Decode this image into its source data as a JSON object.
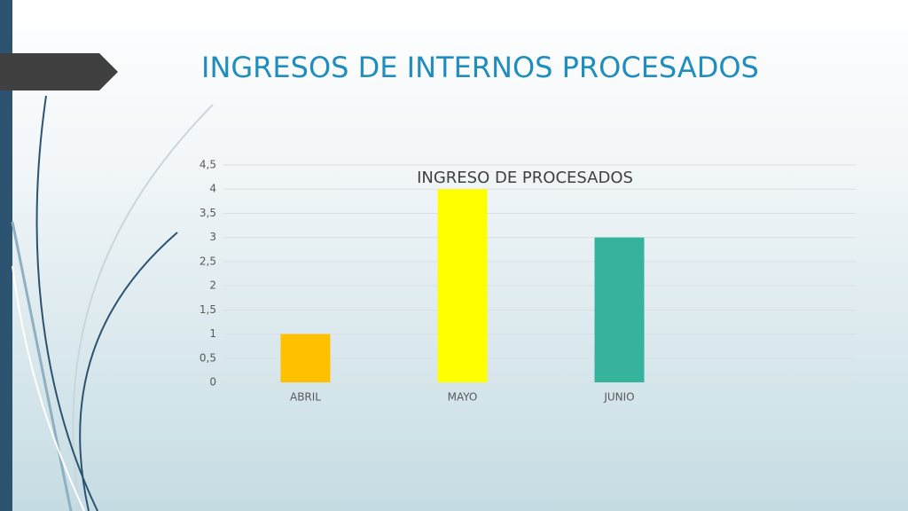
{
  "chart_data": {
    "type": "bar",
    "slide_title": "INGRESOS DE INTERNOS PROCESADOS",
    "title": "INGRESO DE PROCESADOS",
    "categories": [
      "ABRIL",
      "MAYO",
      "JUNIO"
    ],
    "values": [
      1,
      4,
      3
    ],
    "colors": [
      "#ffc000",
      "#ffff00",
      "#36b39c"
    ],
    "ylim": [
      0,
      4.5
    ],
    "yticks": [
      0,
      {
        "value": 0.5,
        "label": "0,5"
      },
      1,
      {
        "value": 1.5,
        "label": "1,5"
      },
      2,
      {
        "value": 2.5,
        "label": "2,5"
      },
      3,
      {
        "value": 3.5,
        "label": "3,5"
      },
      4,
      {
        "value": 4.5,
        "label": "4,5"
      }
    ],
    "grid": true
  }
}
